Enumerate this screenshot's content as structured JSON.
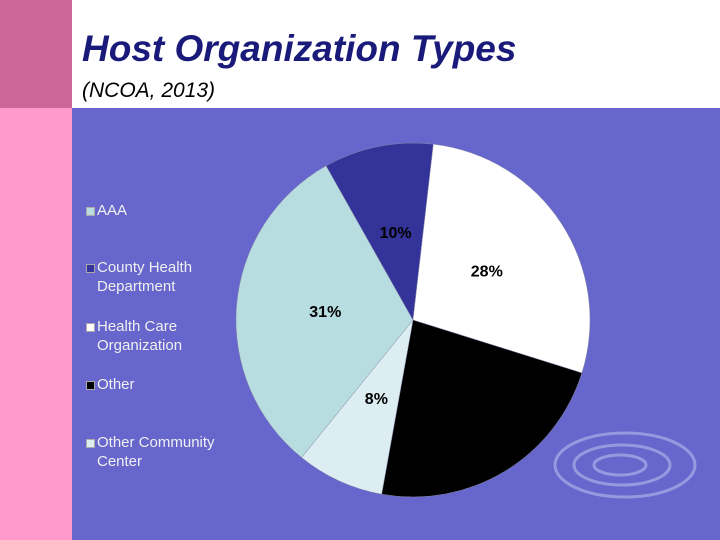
{
  "chart_data": {
    "type": "pie",
    "title": "Host Organization Types",
    "subtitle": "(NCOA, 2013)",
    "categories": [
      "AAA",
      "County Health Department",
      "Health Care Organization",
      "Other",
      "Other Community Center"
    ],
    "values": [
      31,
      10,
      28,
      23,
      8
    ],
    "value_labels": [
      "31%",
      "10%",
      "28%",
      null,
      "8%"
    ],
    "colors": [
      "#b7dde0",
      "#333399",
      "#ffffff",
      "#000000",
      "#ddeef2"
    ]
  }
}
